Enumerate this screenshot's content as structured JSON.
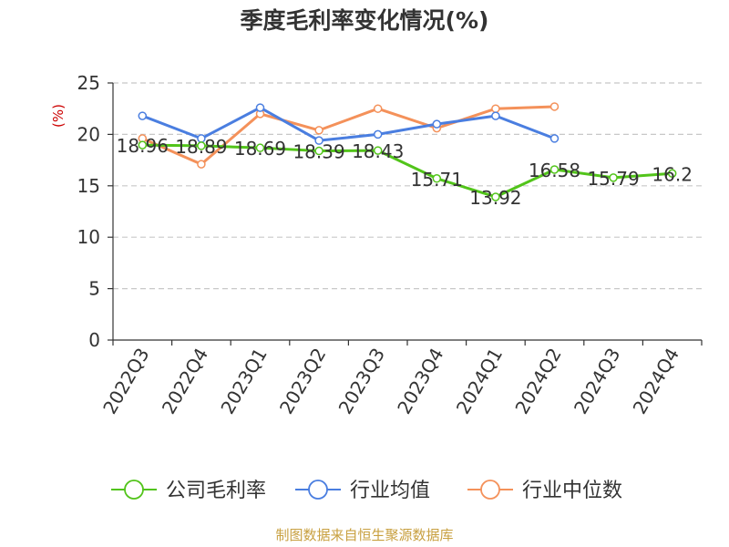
{
  "chart_data": {
    "type": "line",
    "title": "季度毛利率变化情况(%)",
    "ylabel": "(%)",
    "xlabel": "",
    "categories": [
      "2022Q3",
      "2022Q4",
      "2023Q1",
      "2023Q2",
      "2023Q3",
      "2023Q4",
      "2024Q1",
      "2024Q2",
      "2024Q3",
      "2024Q4"
    ],
    "ylim": [
      0,
      25
    ],
    "yticks": [
      0,
      5,
      10,
      15,
      20,
      25
    ],
    "grid": true,
    "legend_position": "bottom",
    "series": [
      {
        "name": "公司毛利率",
        "color": "#52c41a",
        "values": [
          18.96,
          18.89,
          18.69,
          18.39,
          18.43,
          15.71,
          13.92,
          16.58,
          15.79,
          16.2
        ],
        "labels": [
          "18.96",
          "18.89",
          "18.69",
          "18.39",
          "18.43",
          "15.71",
          "13.92",
          "16.58",
          "15.79",
          "16.2"
        ]
      },
      {
        "name": "行业均值",
        "color": "#4a7ee0",
        "values": [
          21.8,
          19.6,
          22.6,
          19.4,
          20.0,
          21.0,
          21.8,
          19.6,
          null,
          null
        ]
      },
      {
        "name": "行业中位数",
        "color": "#f4915a",
        "values": [
          19.6,
          17.1,
          22.0,
          20.4,
          22.5,
          20.6,
          22.5,
          22.7,
          null,
          null
        ]
      }
    ]
  },
  "source": "制图数据来自恒生聚源数据库"
}
